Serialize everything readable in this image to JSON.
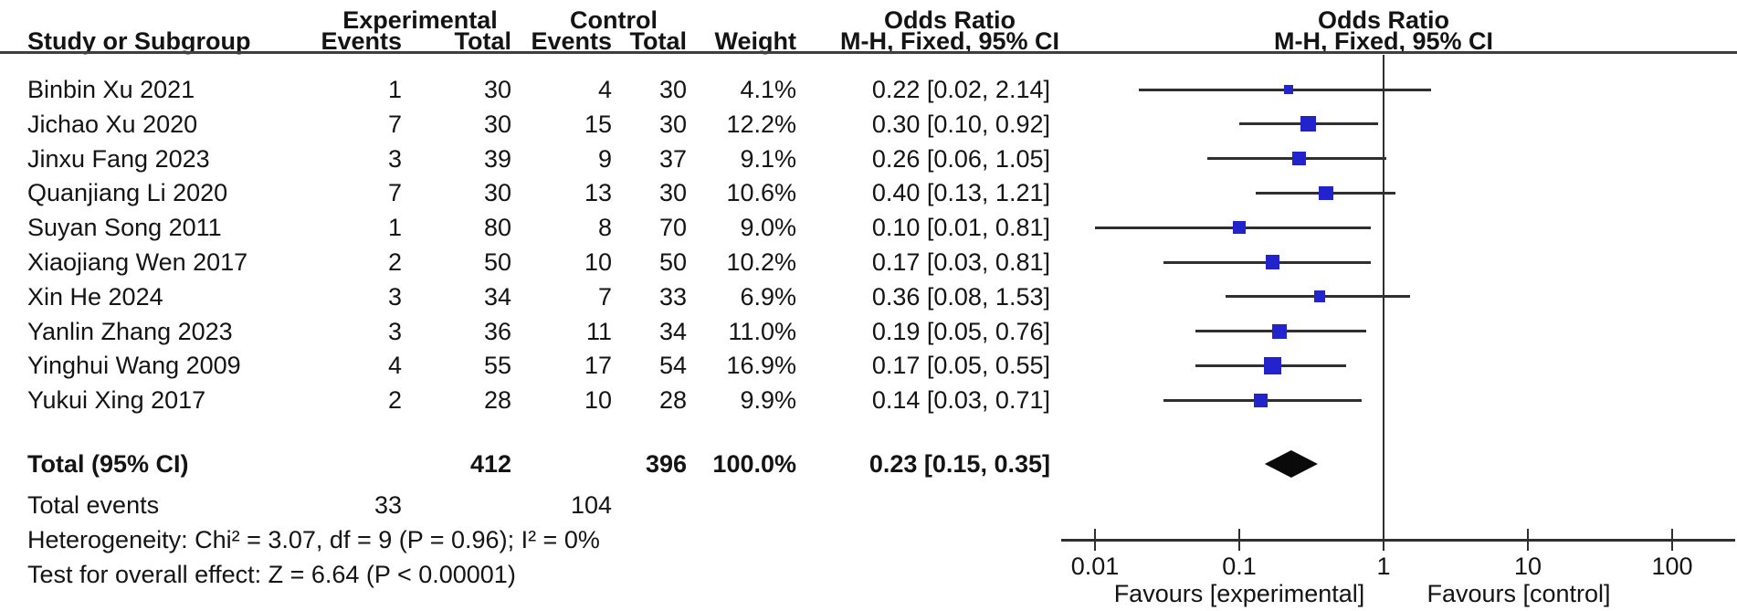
{
  "headers": {
    "group_experimental": "Experimental",
    "group_control": "Control",
    "group_or_text": "Odds Ratio",
    "group_or_plot": "Odds Ratio",
    "study": "Study or Subgroup",
    "exp_events": "Events",
    "exp_total": "Total",
    "ctl_events": "Events",
    "ctl_total": "Total",
    "weight": "Weight",
    "method_text": "M-H, Fixed, 95% CI",
    "method_plot": "M-H, Fixed, 95% CI"
  },
  "chart_data": {
    "type": "forest",
    "effect_measure": "Odds Ratio",
    "method": "M-H, Fixed, 95% CI",
    "x_scale": "log10",
    "x_range": [
      0.01,
      100
    ],
    "x_ticks": [
      0.01,
      0.1,
      1,
      10,
      100
    ],
    "x_tick_labels": [
      "0.01",
      "0.1",
      "1",
      "10",
      "100"
    ],
    "favours_left": "Favours [experimental]",
    "favours_right": "Favours [control]",
    "marker_color": "#2323cd",
    "studies": [
      {
        "name": "Binbin Xu 2021",
        "exp_events": "1",
        "exp_total": "30",
        "ctl_events": "4",
        "ctl_total": "30",
        "weight": "4.1%",
        "weight_pct": 4.1,
        "or": 0.22,
        "ci_low": 0.02,
        "ci_high": 2.14,
        "or_text": "0.22 [0.02, 2.14]"
      },
      {
        "name": "Jichao Xu 2020",
        "exp_events": "7",
        "exp_total": "30",
        "ctl_events": "15",
        "ctl_total": "30",
        "weight": "12.2%",
        "weight_pct": 12.2,
        "or": 0.3,
        "ci_low": 0.1,
        "ci_high": 0.92,
        "or_text": "0.30 [0.10, 0.92]"
      },
      {
        "name": "Jinxu Fang 2023",
        "exp_events": "3",
        "exp_total": "39",
        "ctl_events": "9",
        "ctl_total": "37",
        "weight": "9.1%",
        "weight_pct": 9.1,
        "or": 0.26,
        "ci_low": 0.06,
        "ci_high": 1.05,
        "or_text": "0.26 [0.06, 1.05]"
      },
      {
        "name": "Quanjiang Li 2020",
        "exp_events": "7",
        "exp_total": "30",
        "ctl_events": "13",
        "ctl_total": "30",
        "weight": "10.6%",
        "weight_pct": 10.6,
        "or": 0.4,
        "ci_low": 0.13,
        "ci_high": 1.21,
        "or_text": "0.40 [0.13, 1.21]"
      },
      {
        "name": "Suyan Song 2011",
        "exp_events": "1",
        "exp_total": "80",
        "ctl_events": "8",
        "ctl_total": "70",
        "weight": "9.0%",
        "weight_pct": 9.0,
        "or": 0.1,
        "ci_low": 0.01,
        "ci_high": 0.81,
        "or_text": "0.10 [0.01, 0.81]"
      },
      {
        "name": "Xiaojiang Wen 2017",
        "exp_events": "2",
        "exp_total": "50",
        "ctl_events": "10",
        "ctl_total": "50",
        "weight": "10.2%",
        "weight_pct": 10.2,
        "or": 0.17,
        "ci_low": 0.03,
        "ci_high": 0.81,
        "or_text": "0.17 [0.03, 0.81]"
      },
      {
        "name": "Xin He 2024",
        "exp_events": "3",
        "exp_total": "34",
        "ctl_events": "7",
        "ctl_total": "33",
        "weight": "6.9%",
        "weight_pct": 6.9,
        "or": 0.36,
        "ci_low": 0.08,
        "ci_high": 1.53,
        "or_text": "0.36 [0.08, 1.53]"
      },
      {
        "name": "Yanlin Zhang 2023",
        "exp_events": "3",
        "exp_total": "36",
        "ctl_events": "11",
        "ctl_total": "34",
        "weight": "11.0%",
        "weight_pct": 11.0,
        "or": 0.19,
        "ci_low": 0.05,
        "ci_high": 0.76,
        "or_text": "0.19 [0.05, 0.76]"
      },
      {
        "name": "Yinghui Wang 2009",
        "exp_events": "4",
        "exp_total": "55",
        "ctl_events": "17",
        "ctl_total": "54",
        "weight": "16.9%",
        "weight_pct": 16.9,
        "or": 0.17,
        "ci_low": 0.05,
        "ci_high": 0.55,
        "or_text": "0.17 [0.05, 0.55]"
      },
      {
        "name": "Yukui Xing 2017",
        "exp_events": "2",
        "exp_total": "28",
        "ctl_events": "10",
        "ctl_total": "28",
        "weight": "9.9%",
        "weight_pct": 9.9,
        "or": 0.14,
        "ci_low": 0.03,
        "ci_high": 0.71,
        "or_text": "0.14 [0.03, 0.71]"
      }
    ],
    "total": {
      "label": "Total (95% CI)",
      "exp_total": "412",
      "ctl_total": "396",
      "weight": "100.0%",
      "or": 0.23,
      "ci_low": 0.15,
      "ci_high": 0.35,
      "or_text": "0.23 [0.15, 0.35]"
    },
    "total_events": {
      "label": "Total events",
      "exp": "33",
      "ctl": "104"
    },
    "heterogeneity": "Heterogeneity: Chi² = 3.07, df = 9 (P = 0.96); I² = 0%",
    "overall_effect": "Test for overall effect: Z = 6.64 (P < 0.00001)"
  }
}
